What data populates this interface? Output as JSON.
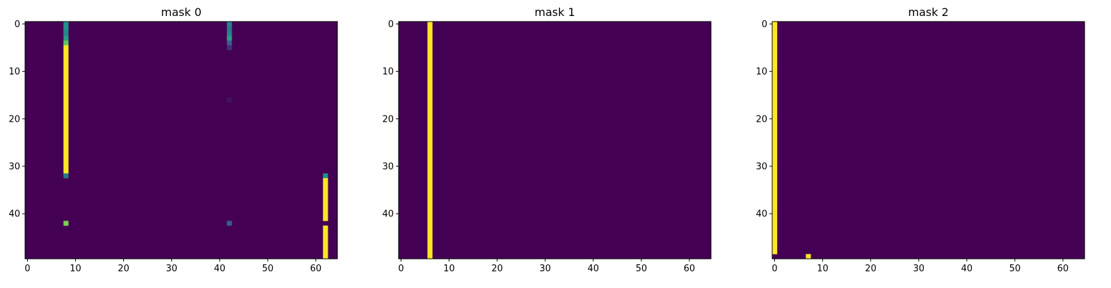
{
  "chart_data": [
    {
      "type": "heatmap",
      "title": "mask 0",
      "xlabel": "",
      "ylabel": "",
      "shape": [
        50,
        65
      ],
      "xlim": [
        -0.5,
        64.5
      ],
      "ylim": [
        49.5,
        -0.5
      ],
      "xticks": [
        "0",
        "10",
        "20",
        "30",
        "40",
        "50",
        "60"
      ],
      "yticks": [
        "0",
        "10",
        "20",
        "30",
        "40"
      ],
      "colormap": "viridis",
      "background": 0.0,
      "cells": [
        {
          "col": 8,
          "rows": [
            0,
            1
          ],
          "value": 0.5
        },
        {
          "col": 8,
          "rows": [
            2,
            2
          ],
          "value": 0.45
        },
        {
          "col": 8,
          "rows": [
            3,
            3
          ],
          "value": 0.55
        },
        {
          "col": 8,
          "rows": [
            4,
            4
          ],
          "value": 0.75
        },
        {
          "col": 8,
          "rows": [
            5,
            31
          ],
          "value": 1.0
        },
        {
          "col": 8,
          "rows": [
            32,
            32
          ],
          "value": 0.4
        },
        {
          "col": 8,
          "rows": [
            42,
            42
          ],
          "value": 0.8
        },
        {
          "col": 42,
          "rows": [
            0,
            0
          ],
          "value": 0.45
        },
        {
          "col": 42,
          "rows": [
            1,
            1
          ],
          "value": 0.4
        },
        {
          "col": 42,
          "rows": [
            2,
            2
          ],
          "value": 0.45
        },
        {
          "col": 42,
          "rows": [
            3,
            3
          ],
          "value": 0.55
        },
        {
          "col": 42,
          "rows": [
            4,
            4
          ],
          "value": 0.3
        },
        {
          "col": 42,
          "rows": [
            5,
            5
          ],
          "value": 0.15
        },
        {
          "col": 42,
          "rows": [
            16,
            16
          ],
          "value": 0.05
        },
        {
          "col": 42,
          "rows": [
            42,
            42
          ],
          "value": 0.3
        },
        {
          "col": 62,
          "rows": [
            32,
            32
          ],
          "value": 0.5
        },
        {
          "col": 62,
          "rows": [
            33,
            41
          ],
          "value": 1.0
        },
        {
          "col": 62,
          "rows": [
            43,
            49
          ],
          "value": 1.0
        }
      ]
    },
    {
      "type": "heatmap",
      "title": "mask 1",
      "xlabel": "",
      "ylabel": "",
      "shape": [
        50,
        65
      ],
      "xlim": [
        -0.5,
        64.5
      ],
      "ylim": [
        49.5,
        -0.5
      ],
      "xticks": [
        "0",
        "10",
        "20",
        "30",
        "40",
        "50",
        "60"
      ],
      "yticks": [
        "0",
        "10",
        "20",
        "30",
        "40"
      ],
      "colormap": "viridis",
      "background": 0.0,
      "cells": [
        {
          "col": 6,
          "rows": [
            0,
            49
          ],
          "value": 1.0
        }
      ]
    },
    {
      "type": "heatmap",
      "title": "mask 2",
      "xlabel": "",
      "ylabel": "",
      "shape": [
        50,
        65
      ],
      "xlim": [
        -0.5,
        64.5
      ],
      "ylim": [
        49.5,
        -0.5
      ],
      "xticks": [
        "0",
        "10",
        "20",
        "30",
        "40",
        "50",
        "60"
      ],
      "yticks": [
        "0",
        "10",
        "20",
        "30",
        "40"
      ],
      "colormap": "viridis",
      "background": 0.0,
      "cells": [
        {
          "col": 0,
          "rows": [
            0,
            48
          ],
          "value": 1.0
        },
        {
          "col": 7,
          "rows": [
            49,
            49
          ],
          "value": 1.0
        }
      ]
    }
  ]
}
